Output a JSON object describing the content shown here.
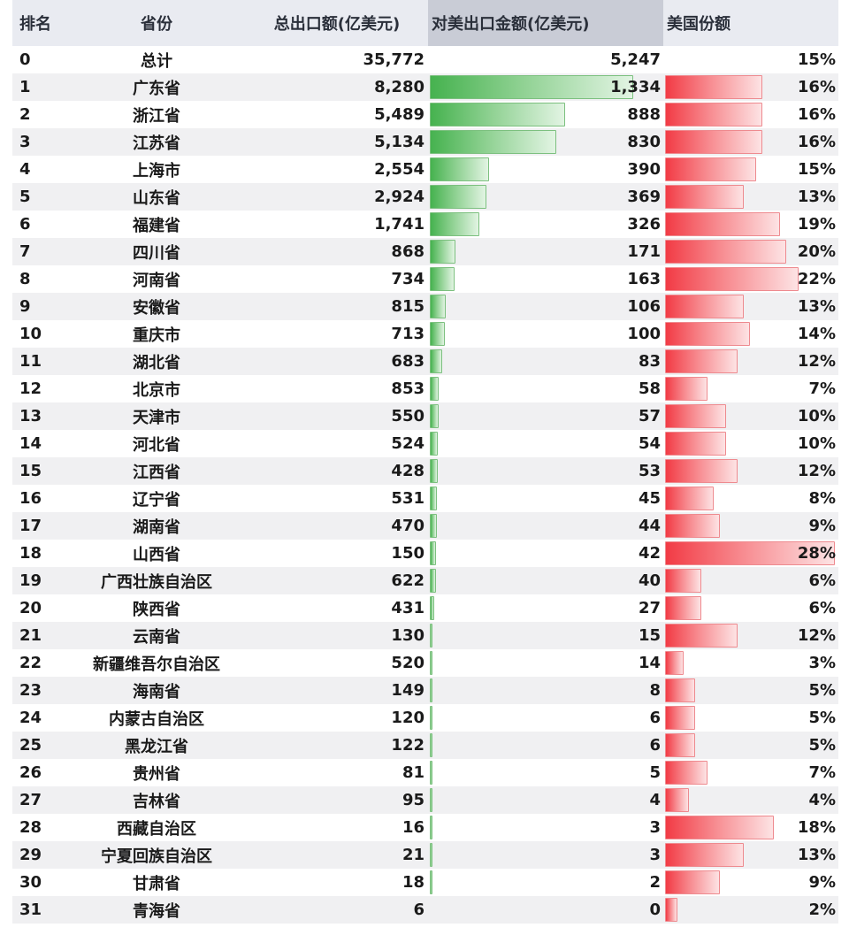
{
  "headers": {
    "rank": "排名",
    "province": "省份",
    "total": "总出口额(亿美元)",
    "us_export": "对美出口金额(亿美元)",
    "us_share": "美国份额"
  },
  "chart_data": {
    "type": "table",
    "columns": [
      "排名",
      "省份",
      "总出口额(亿美元)",
      "对美出口金额(亿美元)",
      "美国份额"
    ],
    "us_bar_max": 1334,
    "share_bar_max": 0.28,
    "rows": [
      {
        "rank": "0",
        "province": "总计",
        "total": "35,772",
        "us": "5,247",
        "us_value": 5247,
        "share": "15%",
        "share_value": 0.15,
        "is_total": true
      },
      {
        "rank": "1",
        "province": "广东省",
        "total": "8,280",
        "us": "1,334",
        "us_value": 1334,
        "share": "16%",
        "share_value": 0.16
      },
      {
        "rank": "2",
        "province": "浙江省",
        "total": "5,489",
        "us": "888",
        "us_value": 888,
        "share": "16%",
        "share_value": 0.16
      },
      {
        "rank": "3",
        "province": "江苏省",
        "total": "5,134",
        "us": "830",
        "us_value": 830,
        "share": "16%",
        "share_value": 0.16
      },
      {
        "rank": "4",
        "province": "上海市",
        "total": "2,554",
        "us": "390",
        "us_value": 390,
        "share": "15%",
        "share_value": 0.15
      },
      {
        "rank": "5",
        "province": "山东省",
        "total": "2,924",
        "us": "369",
        "us_value": 369,
        "share": "13%",
        "share_value": 0.13
      },
      {
        "rank": "6",
        "province": "福建省",
        "total": "1,741",
        "us": "326",
        "us_value": 326,
        "share": "19%",
        "share_value": 0.19
      },
      {
        "rank": "7",
        "province": "四川省",
        "total": "868",
        "us": "171",
        "us_value": 171,
        "share": "20%",
        "share_value": 0.2
      },
      {
        "rank": "8",
        "province": "河南省",
        "total": "734",
        "us": "163",
        "us_value": 163,
        "share": "22%",
        "share_value": 0.22
      },
      {
        "rank": "9",
        "province": "安徽省",
        "total": "815",
        "us": "106",
        "us_value": 106,
        "share": "13%",
        "share_value": 0.13
      },
      {
        "rank": "10",
        "province": "重庆市",
        "total": "713",
        "us": "100",
        "us_value": 100,
        "share": "14%",
        "share_value": 0.14
      },
      {
        "rank": "11",
        "province": "湖北省",
        "total": "683",
        "us": "83",
        "us_value": 83,
        "share": "12%",
        "share_value": 0.12
      },
      {
        "rank": "12",
        "province": "北京市",
        "total": "853",
        "us": "58",
        "us_value": 58,
        "share": "7%",
        "share_value": 0.07
      },
      {
        "rank": "13",
        "province": "天津市",
        "total": "550",
        "us": "57",
        "us_value": 57,
        "share": "10%",
        "share_value": 0.1
      },
      {
        "rank": "14",
        "province": "河北省",
        "total": "524",
        "us": "54",
        "us_value": 54,
        "share": "10%",
        "share_value": 0.1
      },
      {
        "rank": "15",
        "province": "江西省",
        "total": "428",
        "us": "53",
        "us_value": 53,
        "share": "12%",
        "share_value": 0.12
      },
      {
        "rank": "16",
        "province": "辽宁省",
        "total": "531",
        "us": "45",
        "us_value": 45,
        "share": "8%",
        "share_value": 0.08
      },
      {
        "rank": "17",
        "province": "湖南省",
        "total": "470",
        "us": "44",
        "us_value": 44,
        "share": "9%",
        "share_value": 0.09
      },
      {
        "rank": "18",
        "province": "山西省",
        "total": "150",
        "us": "42",
        "us_value": 42,
        "share": "28%",
        "share_value": 0.28
      },
      {
        "rank": "19",
        "province": "广西壮族自治区",
        "total": "622",
        "us": "40",
        "us_value": 40,
        "share": "6%",
        "share_value": 0.06
      },
      {
        "rank": "20",
        "province": "陕西省",
        "total": "431",
        "us": "27",
        "us_value": 27,
        "share": "6%",
        "share_value": 0.06
      },
      {
        "rank": "21",
        "province": "云南省",
        "total": "130",
        "us": "15",
        "us_value": 15,
        "share": "12%",
        "share_value": 0.12
      },
      {
        "rank": "22",
        "province": "新疆维吾尔自治区",
        "total": "520",
        "us": "14",
        "us_value": 14,
        "share": "3%",
        "share_value": 0.03
      },
      {
        "rank": "23",
        "province": "海南省",
        "total": "149",
        "us": "8",
        "us_value": 8,
        "share": "5%",
        "share_value": 0.05
      },
      {
        "rank": "24",
        "province": "内蒙古自治区",
        "total": "120",
        "us": "6",
        "us_value": 6,
        "share": "5%",
        "share_value": 0.05
      },
      {
        "rank": "25",
        "province": "黑龙江省",
        "total": "122",
        "us": "6",
        "us_value": 6,
        "share": "5%",
        "share_value": 0.05
      },
      {
        "rank": "26",
        "province": "贵州省",
        "total": "81",
        "us": "5",
        "us_value": 5,
        "share": "7%",
        "share_value": 0.07
      },
      {
        "rank": "27",
        "province": "吉林省",
        "total": "95",
        "us": "4",
        "us_value": 4,
        "share": "4%",
        "share_value": 0.04
      },
      {
        "rank": "28",
        "province": "西藏自治区",
        "total": "16",
        "us": "3",
        "us_value": 3,
        "share": "18%",
        "share_value": 0.18
      },
      {
        "rank": "29",
        "province": "宁夏回族自治区",
        "total": "21",
        "us": "3",
        "us_value": 3,
        "share": "13%",
        "share_value": 0.13
      },
      {
        "rank": "30",
        "province": "甘肃省",
        "total": "18",
        "us": "2",
        "us_value": 2,
        "share": "9%",
        "share_value": 0.09
      },
      {
        "rank": "31",
        "province": "青海省",
        "total": "6",
        "us": "0",
        "us_value": 0,
        "share": "2%",
        "share_value": 0.02
      }
    ]
  },
  "colors": {
    "us_bar": "#46b24f",
    "share_bar": "#f23b45",
    "header_bg": "#e9ebf1",
    "header_selected_bg": "#c9ccd6",
    "stripe_bg": "#f0f0f2"
  }
}
